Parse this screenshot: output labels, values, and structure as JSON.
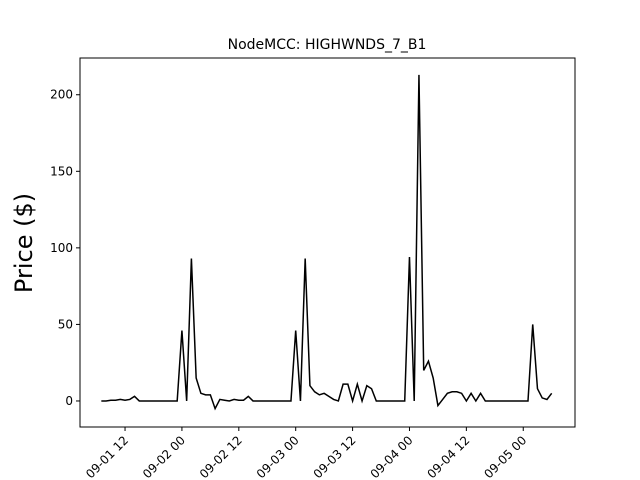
{
  "chart_data": {
    "type": "line",
    "title": "NodeMCC: HIGHWNDS_7_B1",
    "y_label": "Price ($)",
    "x": [
      "09-01 07",
      "09-01 08",
      "09-01 09",
      "09-01 10",
      "09-01 11",
      "09-01 12",
      "09-01 13",
      "09-01 14",
      "09-01 15",
      "09-01 16",
      "09-01 17",
      "09-01 18",
      "09-01 19",
      "09-01 20",
      "09-01 21",
      "09-01 22",
      "09-01 23",
      "09-02 00",
      "09-02 01",
      "09-02 02",
      "09-02 03",
      "09-02 04",
      "09-02 05",
      "09-02 06",
      "09-02 07",
      "09-02 08",
      "09-02 09",
      "09-02 10",
      "09-02 11",
      "09-02 12",
      "09-02 13",
      "09-02 14",
      "09-02 15",
      "09-02 16",
      "09-02 17",
      "09-02 18",
      "09-02 19",
      "09-02 20",
      "09-02 21",
      "09-02 22",
      "09-02 23",
      "09-03 00",
      "09-03 01",
      "09-03 02",
      "09-03 03",
      "09-03 04",
      "09-03 05",
      "09-03 06",
      "09-03 07",
      "09-03 08",
      "09-03 09",
      "09-03 10",
      "09-03 11",
      "09-03 12",
      "09-03 13",
      "09-03 14",
      "09-03 15",
      "09-03 16",
      "09-03 17",
      "09-03 18",
      "09-03 19",
      "09-03 20",
      "09-03 21",
      "09-03 22",
      "09-03 23",
      "09-04 00",
      "09-04 01",
      "09-04 02",
      "09-04 03",
      "09-04 04",
      "09-04 05",
      "09-04 06",
      "09-04 07",
      "09-04 08",
      "09-04 09",
      "09-04 10",
      "09-04 11",
      "09-04 12",
      "09-04 13",
      "09-04 14",
      "09-04 15",
      "09-04 16",
      "09-04 17",
      "09-04 18",
      "09-04 19",
      "09-04 20",
      "09-04 21",
      "09-04 22",
      "09-04 23",
      "09-05 00",
      "09-05 01",
      "09-05 02",
      "09-05 03",
      "09-05 04",
      "09-05 05",
      "09-05 06"
    ],
    "series": [
      {
        "color": "#000000",
        "values": [
          0,
          0,
          0.5,
          0.5,
          1,
          0.5,
          1,
          3,
          0,
          0,
          0,
          0,
          0,
          0,
          0,
          0,
          0,
          46,
          0,
          93,
          15,
          5,
          4,
          4,
          -5,
          1,
          0.5,
          0,
          1,
          0.5,
          0.5,
          3,
          0,
          0,
          0,
          0,
          0,
          0,
          0,
          0,
          0,
          46,
          0,
          93,
          10,
          6,
          4,
          5,
          3,
          1,
          0,
          11,
          11,
          0,
          11,
          0,
          10,
          8,
          0,
          0,
          0,
          0,
          0,
          0,
          0,
          94,
          0,
          213,
          20,
          26,
          15,
          -3,
          1,
          5,
          6,
          6,
          5,
          0,
          5,
          0,
          5,
          0,
          0,
          0,
          0,
          0,
          0,
          0,
          0,
          0,
          0,
          50,
          8,
          2,
          1,
          5
        ]
      }
    ],
    "xlim": [
      "09-01 02:30",
      "09-05 10:55"
    ],
    "xticks": [
      "09-01 12",
      "09-02 00",
      "09-02 12",
      "09-03 00",
      "09-03 12",
      "09-04 00",
      "09-04 12",
      "09-05 00"
    ],
    "ylim": [
      -17,
      224
    ],
    "yticks": [
      0,
      50,
      100,
      150,
      200
    ]
  }
}
